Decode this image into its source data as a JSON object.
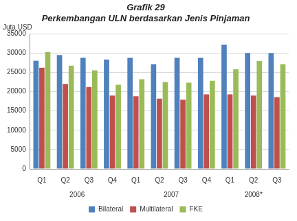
{
  "chart_data": {
    "type": "bar",
    "title": "Grafik 29",
    "subtitle": "Perkembangan ULN berdasarkan Jenis Pinjaman",
    "y_label": "Juta USD",
    "categories": [
      "Q1",
      "Q2",
      "Q3",
      "Q4",
      "Q1",
      "Q2",
      "Q3",
      "Q4",
      "Q1",
      "Q2",
      "Q3"
    ],
    "groups": [
      {
        "label": "2006",
        "size": 4
      },
      {
        "label": "2007",
        "size": 4
      },
      {
        "label": "2008*",
        "size": 3
      }
    ],
    "series": [
      {
        "name": "Bilateral",
        "color": "#4f81bd",
        "values": [
          28000,
          29500,
          28800,
          28300,
          28800,
          27100,
          28800,
          28800,
          32200,
          30000,
          30000
        ]
      },
      {
        "name": "Multilateral",
        "color": "#c0504d",
        "values": [
          26200,
          22000,
          21200,
          19000,
          18800,
          18200,
          17900,
          19300,
          19300,
          19000,
          18600
        ]
      },
      {
        "name": "FKE",
        "color": "#9bbb59",
        "values": [
          30300,
          26700,
          25500,
          21800,
          23200,
          22500,
          22300,
          22800,
          25800,
          27900,
          27100
        ]
      }
    ],
    "ylim": [
      0,
      35000
    ],
    "yticks": [
      0,
      5000,
      10000,
      15000,
      20000,
      25000,
      30000,
      35000
    ],
    "grid": true,
    "legend": "bottom"
  }
}
